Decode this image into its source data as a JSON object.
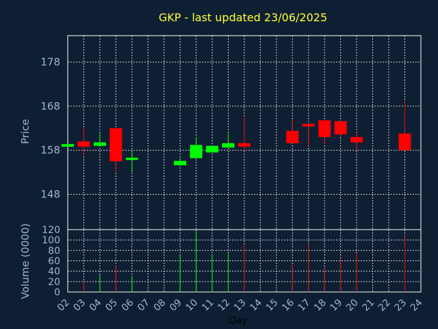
{
  "chart_data": {
    "type": "candlestick",
    "title": "GKP - last updated 23/06/2025",
    "xlabel": "Day",
    "price_panel": {
      "ylabel": "Price",
      "ylim": [
        140,
        184
      ],
      "yticks": [
        "148",
        "158",
        "168",
        "178"
      ],
      "grid": true
    },
    "volume_panel": {
      "ylabel": "Volume (0000)",
      "ylim": [
        0,
        120
      ],
      "yticks": [
        "0",
        "20",
        "40",
        "60",
        "80",
        "100",
        "120"
      ],
      "grid": true
    },
    "x_ticks": [
      "02",
      "03",
      "04",
      "05",
      "06",
      "07",
      "08",
      "09",
      "10",
      "11",
      "12",
      "13",
      "14",
      "15",
      "16",
      "17",
      "18",
      "19",
      "20",
      "21",
      "22",
      "23",
      "24"
    ],
    "candles": [
      {
        "day": 2,
        "open": 158.8,
        "close": 159.4,
        "high": 159.4,
        "low": 158.8,
        "volume": 0
      },
      {
        "day": 3,
        "open": 160.0,
        "close": 158.8,
        "high": 163.0,
        "low": 157.0,
        "volume": 20
      },
      {
        "day": 4,
        "open": 159.0,
        "close": 159.8,
        "high": 162.0,
        "low": 158.8,
        "volume": 33
      },
      {
        "day": 5,
        "open": 163.0,
        "close": 155.5,
        "high": 163.2,
        "low": 153.0,
        "volume": 51
      },
      {
        "day": 6,
        "open": 155.8,
        "close": 156.3,
        "high": 158.0,
        "low": 153.0,
        "volume": 31
      },
      {
        "day": 9,
        "open": 154.6,
        "close": 155.6,
        "high": 156.2,
        "low": 154.6,
        "volume": 70
      },
      {
        "day": 10,
        "open": 156.2,
        "close": 159.2,
        "high": 161.0,
        "low": 156.2,
        "volume": 117
      },
      {
        "day": 11,
        "open": 157.5,
        "close": 159.0,
        "high": 159.0,
        "low": 157.5,
        "volume": 73
      },
      {
        "day": 12,
        "open": 158.6,
        "close": 159.6,
        "high": 161.8,
        "low": 158.6,
        "volume": 75
      },
      {
        "day": 13,
        "open": 159.6,
        "close": 158.8,
        "high": 165.5,
        "low": 158.0,
        "volume": 90
      },
      {
        "day": 16,
        "open": 162.4,
        "close": 159.6,
        "high": 165.0,
        "low": 159.6,
        "volume": 53
      },
      {
        "day": 17,
        "open": 164.0,
        "close": 163.4,
        "high": 164.0,
        "low": 159.0,
        "volume": 90
      },
      {
        "day": 18,
        "open": 164.8,
        "close": 161.0,
        "high": 164.8,
        "low": 159.4,
        "volume": 45
      },
      {
        "day": 19,
        "open": 164.6,
        "close": 161.6,
        "high": 164.6,
        "low": 161.0,
        "volume": 64
      },
      {
        "day": 20,
        "open": 161.0,
        "close": 159.8,
        "high": 162.0,
        "low": 158.0,
        "volume": 75
      },
      {
        "day": 23,
        "open": 161.8,
        "close": 158.0,
        "high": 169.0,
        "low": 158.0,
        "volume": 108
      }
    ],
    "colors": {
      "background": "#0f1f33",
      "up": "#00ff00",
      "down": "#ff0000",
      "axis": "#9fb4d4",
      "grid": "#ffffff",
      "title": "#ffff33"
    }
  }
}
